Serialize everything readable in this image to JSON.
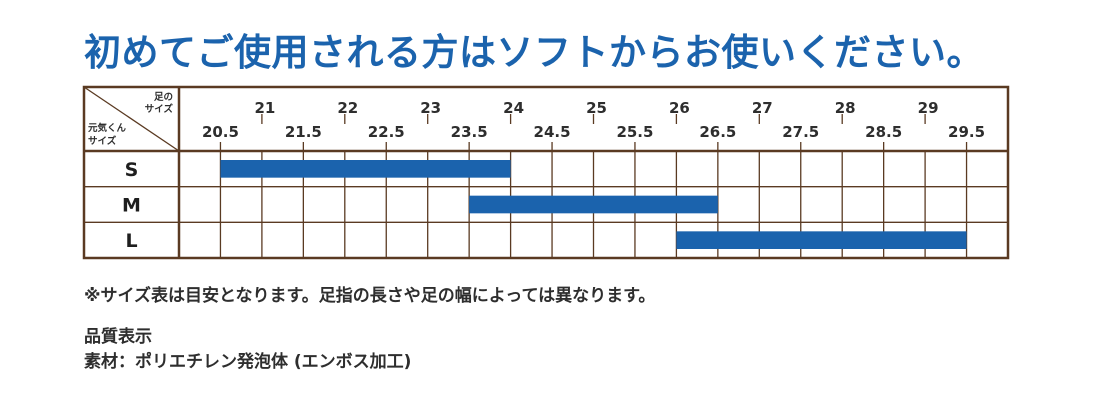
{
  "headline": "初めてご使用される方はソフトからお使いください。",
  "note": "※サイズ表は目安となります。足指の長さや足の幅によっては異なります。",
  "spec": {
    "title": "品質表示",
    "material": "素材：ポリエチレン発泡体 (エンボス加工)"
  },
  "colors": {
    "accent": "#1b63ad",
    "grid": "#5a3a22",
    "text": "#2e2e2e"
  },
  "chart_data": {
    "type": "table",
    "corner_top": [
      "足の",
      "サイズ"
    ],
    "corner_bottom": [
      "元気くん",
      "サイズ"
    ],
    "integer_ticks": [
      "21",
      "22",
      "23",
      "24",
      "25",
      "26",
      "27",
      "28",
      "29"
    ],
    "half_ticks": [
      "20.5",
      "21.5",
      "22.5",
      "23.5",
      "24.5",
      "25.5",
      "26.5",
      "27.5",
      "28.5",
      "29.5"
    ],
    "xlim": [
      20,
      30
    ],
    "rows": [
      {
        "label": "S",
        "from": 20.5,
        "to": 24.0
      },
      {
        "label": "M",
        "from": 23.5,
        "to": 26.5
      },
      {
        "label": "L",
        "from": 26.0,
        "to": 29.5
      }
    ]
  }
}
